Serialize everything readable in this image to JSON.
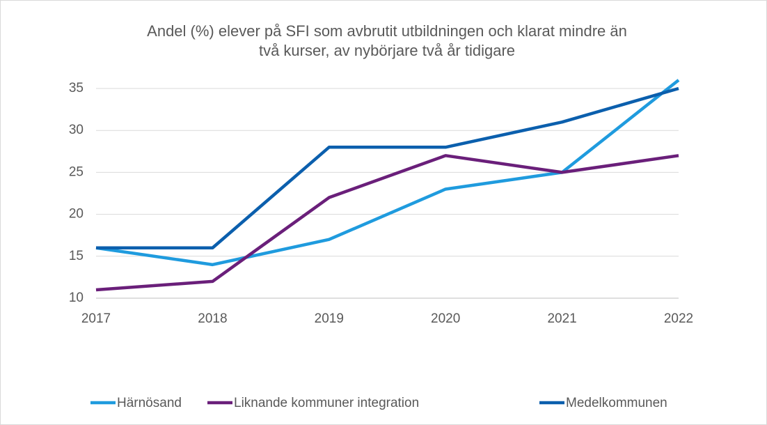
{
  "chart_data": {
    "type": "line",
    "title": [
      "Andel (%) elever på SFI som avbrutit utbildningen och klarat mindre än",
      "två kurser, av nybörjare två år tidigare"
    ],
    "categories": [
      "2017",
      "2018",
      "2019",
      "2020",
      "2021",
      "2022"
    ],
    "series": [
      {
        "name": "Härnösand",
        "color": "#1f9bde",
        "values": [
          16,
          14,
          17,
          23,
          25,
          36
        ]
      },
      {
        "name": "Liknande kommuner integration",
        "color": "#6a1f7a",
        "values": [
          11,
          12,
          22,
          27,
          25,
          27
        ]
      },
      {
        "name": "Medelkommunen",
        "color": "#0b5fad",
        "values": [
          16,
          16,
          28,
          28,
          31,
          35
        ]
      }
    ],
    "ylim": [
      10,
      36
    ],
    "yticks": [
      10,
      15,
      20,
      25,
      30,
      35
    ],
    "grid": true,
    "legend": "bottom"
  }
}
